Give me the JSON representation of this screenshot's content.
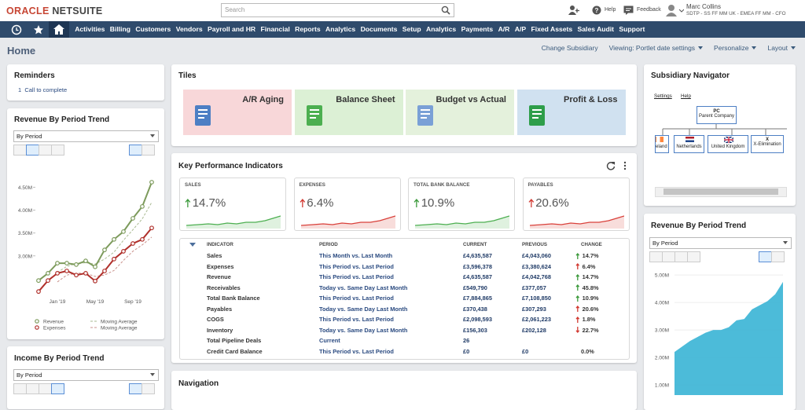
{
  "header": {
    "logo_brand": "ORACLE",
    "logo_product": "NETSUITE",
    "search_placeholder": "Search",
    "help": "Help",
    "feedback": "Feedback",
    "user_name": "Marc Collins",
    "user_role": "SDTP - SS FF MM UK - EMEA FF MM - CFO"
  },
  "nav": {
    "items": [
      "Activities",
      "Billing",
      "Customers",
      "Vendors",
      "Payroll and HR",
      "Financial",
      "Reports",
      "Analytics",
      "Documents",
      "Setup",
      "Analytics",
      "Payments",
      "A/R",
      "A/P",
      "Fixed Assets",
      "Sales Audit",
      "Support"
    ]
  },
  "page": {
    "title": "Home",
    "actions": [
      "Change Subsidiary",
      "Viewing: Portlet date settings",
      "Personalize",
      "Layout"
    ]
  },
  "reminders": {
    "title": "Reminders",
    "items": [
      {
        "count": 1,
        "label": "Call to complete"
      }
    ]
  },
  "revenue_trend_left": {
    "title": "Revenue By Period Trend",
    "select": "By Period",
    "chart_data": {
      "type": "line",
      "categories": [
        null,
        null,
        "Jan '19",
        null,
        null,
        null,
        "May '19",
        null,
        null,
        null,
        "Sep '19",
        null,
        null
      ],
      "series": [
        {
          "name": "Revenue",
          "color": "#7d9b5c",
          "marker": true,
          "values": [
            2460000,
            2620000,
            2840000,
            2840000,
            2810000,
            2890000,
            2760000,
            3130000,
            3360000,
            3530000,
            3820000,
            4080000,
            4610000
          ]
        },
        {
          "name": "Expenses",
          "color": "#b0302b",
          "marker": true,
          "values": [
            2220000,
            2460000,
            2620000,
            2670000,
            2580000,
            2620000,
            2450000,
            2670000,
            2930000,
            3100000,
            3270000,
            3360000,
            3610000
          ]
        },
        {
          "name": "Moving Average",
          "color": "#a9ba92",
          "dashed": true,
          "values": [
            null,
            null,
            2640000,
            2770000,
            2830000,
            2850000,
            2820000,
            2930000,
            3080000,
            3340000,
            3570000,
            3810000,
            4170000
          ]
        },
        {
          "name": "Moving Average",
          "color": "#c9928c",
          "dashed": true,
          "values": [
            null,
            null,
            2430000,
            2580000,
            2620000,
            2620000,
            2550000,
            2580000,
            2680000,
            2900000,
            3100000,
            3240000,
            3410000
          ]
        }
      ],
      "ylim": [
        2000000,
        4850000
      ],
      "yticks": [
        {
          "value": 3000000,
          "label": "3.00M"
        },
        {
          "value": 3500000,
          "label": "3.50M"
        },
        {
          "value": 4000000,
          "label": "4.00M"
        },
        {
          "value": 4500000,
          "label": "4.50M"
        }
      ]
    }
  },
  "income_trend": {
    "title": "Income By Period Trend",
    "select": "By Period"
  },
  "tiles": {
    "title": "Tiles",
    "items": [
      {
        "label": "A/R Aging",
        "color": "#f8d7d9"
      },
      {
        "label": "Balance Sheet",
        "color": "#dcf0d5"
      },
      {
        "label": "Budget vs Actual",
        "color": "#e4f1dc"
      },
      {
        "label": "Profit & Loss",
        "color": "#d0e1f0"
      }
    ]
  },
  "kpi": {
    "title": "Key Performance Indicators",
    "cards": [
      {
        "label": "SALES",
        "value": "14.7%",
        "arrow": "up",
        "arrow_color": "#3c9a3c",
        "spark_color": "#4caf50"
      },
      {
        "label": "EXPENSES",
        "value": "6.4%",
        "arrow": "up",
        "arrow_color": "#d23a32",
        "spark_color": "#d9403a"
      },
      {
        "label": "TOTAL BANK BALANCE",
        "value": "10.9%",
        "arrow": "up",
        "arrow_color": "#3c9a3c",
        "spark_color": "#4caf50"
      },
      {
        "label": "PAYABLES",
        "value": "20.6%",
        "arrow": "up",
        "arrow_color": "#d23a32",
        "spark_color": "#d9403a"
      }
    ],
    "columns": [
      "INDICATOR",
      "PERIOD",
      "CURRENT",
      "PREVIOUS",
      "CHANGE"
    ],
    "rows": [
      {
        "indicator": "Sales",
        "period": "This Month vs. Last Month",
        "current": "£4,635,587",
        "previous": "£4,043,060",
        "change": "14.7%",
        "arrow": "up",
        "arrow_color": "#3c9a3c"
      },
      {
        "indicator": "Expenses",
        "period": "This Period vs. Last Period",
        "current": "£3,596,378",
        "previous": "£3,380,624",
        "change": "6.4%",
        "arrow": "up",
        "arrow_color": "#d23a32"
      },
      {
        "indicator": "Revenue",
        "period": "This Period vs. Last Period",
        "current": "£4,635,587",
        "previous": "£4,042,768",
        "change": "14.7%",
        "arrow": "up",
        "arrow_color": "#3c9a3c"
      },
      {
        "indicator": "Receivables",
        "period": "Today vs. Same Day Last Month",
        "current": "£549,790",
        "previous": "£377,057",
        "change": "45.8%",
        "arrow": "up",
        "arrow_color": "#3c9a3c"
      },
      {
        "indicator": "Total Bank Balance",
        "period": "This Period vs. Last Period",
        "current": "£7,884,865",
        "previous": "£7,108,850",
        "change": "10.9%",
        "arrow": "up",
        "arrow_color": "#3c9a3c"
      },
      {
        "indicator": "Payables",
        "period": "Today vs. Same Day Last Month",
        "current": "£370,438",
        "previous": "£307,293",
        "change": "20.6%",
        "arrow": "up",
        "arrow_color": "#d23a32"
      },
      {
        "indicator": "COGS",
        "period": "This Period vs. Last Period",
        "current": "£2,098,593",
        "previous": "£2,061,223",
        "change": "1.8%",
        "arrow": "up",
        "arrow_color": "#d23a32"
      },
      {
        "indicator": "Inventory",
        "period": "Today vs. Same Day Last Month",
        "current": "£156,303",
        "previous": "£202,128",
        "change": "22.7%",
        "arrow": "down",
        "arrow_color": "#d23a32"
      },
      {
        "indicator": "Total Pipeline Deals",
        "period": "Current",
        "current": "26"
      },
      {
        "indicator": "Credit Card Balance",
        "period": "This Period vs. Last Period",
        "current": "£0",
        "previous": "£0",
        "change": "0.0%"
      }
    ]
  },
  "navigation": {
    "title": "Navigation"
  },
  "subsidiary": {
    "title": "Subsidiary Navigator",
    "links": [
      "Settings",
      "Help"
    ],
    "root": {
      "code": "PC",
      "name": "Parent Company"
    },
    "children": [
      {
        "name": "eland"
      },
      {
        "name": "Netherlands"
      },
      {
        "name": "United Kingdom"
      },
      {
        "code": "X",
        "name": "X-Elimination"
      }
    ]
  },
  "revenue_trend_right": {
    "title": "Revenue By Period Trend",
    "select": "By Period",
    "chart_data": {
      "type": "area",
      "color": "#3db5d6",
      "values": [
        2200000,
        2400000,
        2600000,
        2750000,
        2900000,
        3000000,
        3000000,
        3100000,
        3350000,
        3400000,
        3750000,
        3900000,
        4050000,
        4300000,
        4750000
      ],
      "ylim": [
        630000,
        5290000
      ],
      "yticks": [
        {
          "value": 1000000,
          "label": "1.00M"
        },
        {
          "value": 2000000,
          "label": "2.00M"
        },
        {
          "value": 3000000,
          "label": "3.00M"
        },
        {
          "value": 4000000,
          "label": "4.00M"
        },
        {
          "value": 5000000,
          "label": "5.00M"
        }
      ]
    }
  }
}
